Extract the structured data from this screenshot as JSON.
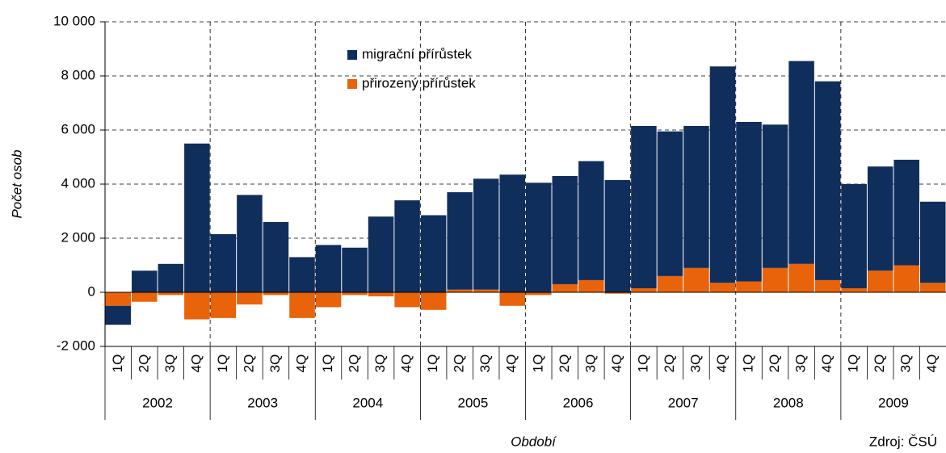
{
  "chart_data": {
    "type": "bar",
    "stacked": true,
    "y_label": "Počet osob",
    "x_label": "Období",
    "source": "Zdroj: ČSÚ",
    "categories": [
      "1Q",
      "2Q",
      "3Q",
      "4Q",
      "1Q",
      "2Q",
      "3Q",
      "4Q",
      "1Q",
      "2Q",
      "3Q",
      "4Q",
      "1Q",
      "2Q",
      "3Q",
      "4Q",
      "1Q",
      "2Q",
      "3Q",
      "4Q",
      "1Q",
      "2Q",
      "3Q",
      "4Q",
      "1Q",
      "2Q",
      "3Q",
      "4Q",
      "1Q",
      "2Q",
      "3Q",
      "4Q"
    ],
    "years": [
      "2002",
      "2003",
      "2004",
      "2005",
      "2006",
      "2007",
      "2008",
      "2009"
    ],
    "series": [
      {
        "name": "migrační přírůstek",
        "color": "#102e5c",
        "values": [
          -700,
          800,
          1050,
          5500,
          2150,
          3600,
          2600,
          1300,
          1750,
          1650,
          2800,
          3400,
          2850,
          3600,
          4100,
          4350,
          4050,
          4000,
          4400,
          4150,
          6000,
          5350,
          5250,
          8000,
          5900,
          5300,
          7500,
          7350,
          3850,
          3850,
          3900,
          3000
        ]
      },
      {
        "name": "přirozený přírůstek",
        "color": "#e8630a",
        "values": [
          -500,
          -350,
          -100,
          -1000,
          -950,
          -450,
          -100,
          -950,
          -550,
          -100,
          -150,
          -550,
          -650,
          100,
          100,
          -500,
          -100,
          300,
          450,
          -50,
          150,
          600,
          900,
          350,
          400,
          900,
          1050,
          450,
          150,
          800,
          1000,
          350
        ]
      }
    ],
    "ylim": [
      -2000,
      10000
    ],
    "yticks": [
      {
        "value": -2000,
        "label": "-2 000"
      },
      0,
      {
        "value": 2000,
        "label": "2 000"
      },
      {
        "value": 4000,
        "label": "4 000"
      },
      {
        "value": 6000,
        "label": "6 000"
      },
      {
        "value": 8000,
        "label": "8 000"
      },
      {
        "value": 10000,
        "label": "10 000"
      }
    ],
    "grid": true
  }
}
